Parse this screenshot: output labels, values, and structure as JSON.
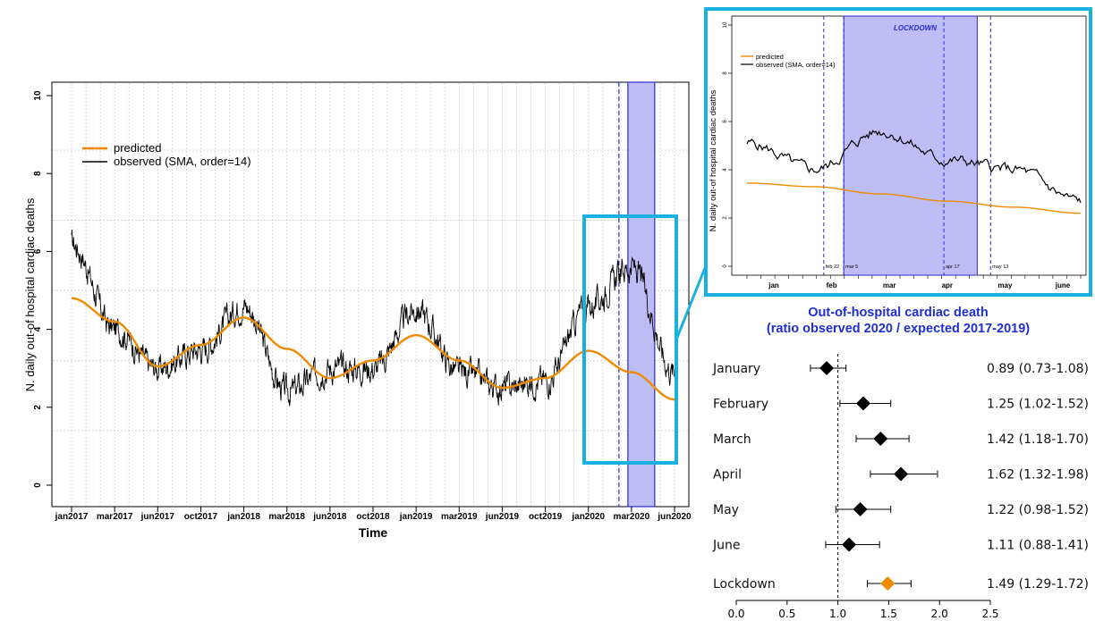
{
  "colors": {
    "predicted": "#f08a00",
    "observed": "#000000",
    "lockdown_band": "#b3b3f5",
    "lockdown_border": "#2a2ad0",
    "date_line": "#2a2ad0",
    "highlight_box": "#1ab0e0",
    "title": "#1f2fd0",
    "lockdown_marker": "#f08a00"
  },
  "chart_data": [
    {
      "type": "line",
      "xlabel": "Time",
      "ylabel": "N. daily out-of hospital cardiac deaths",
      "ylim": [
        0,
        10
      ],
      "yticks": [
        "0",
        "2",
        "4",
        "6",
        "8",
        "10"
      ],
      "xticks": [
        "jan2017",
        "mar2017",
        "jun2017",
        "oct2017",
        "jan2018",
        "mar2018",
        "jun2018",
        "oct2018",
        "jan2019",
        "mar2019",
        "jun2019",
        "oct2019",
        "jan2020",
        "mar2020",
        "jun2020"
      ],
      "grid": true,
      "legend": "top-left",
      "series": [
        {
          "name": "predicted",
          "x": [
            "jan2017",
            "mar2017",
            "jun2017",
            "oct2017",
            "jan2018",
            "mar2018",
            "jun2018",
            "oct2018",
            "jan2019",
            "mar2019",
            "jun2019",
            "oct2019",
            "jan2020",
            "mar2020",
            "jun2020"
          ],
          "values": [
            4.8,
            4.2,
            3.05,
            3.6,
            4.3,
            3.5,
            2.75,
            3.2,
            3.85,
            3.2,
            2.5,
            2.75,
            3.45,
            2.9,
            2.2
          ]
        },
        {
          "name": "observed (SMA, order=14)",
          "x": [
            "jan2017",
            "mar2017",
            "jun2017",
            "oct2017",
            "jan2018",
            "mar2018",
            "jun2018",
            "oct2018",
            "jan2019",
            "mar2019",
            "jun2019",
            "oct2019",
            "jan2020",
            "mar2020",
            "jun2020"
          ],
          "values": [
            6.2,
            4.0,
            3.0,
            3.5,
            4.6,
            2.4,
            3.0,
            3.0,
            4.5,
            2.9,
            2.5,
            2.7,
            4.6,
            5.6,
            2.9
          ]
        }
      ],
      "shaded_region": {
        "from": "mar2020",
        "to": "may2020"
      }
    },
    {
      "type": "line",
      "ylabel": "N. daily out-of hospital cardiac deaths",
      "ylim": [
        0,
        10
      ],
      "yticks": [
        "0",
        "2",
        "4",
        "6",
        "8",
        "10"
      ],
      "xticks": [
        "jan",
        "feb",
        "mar",
        "apr",
        "may",
        "june"
      ],
      "annotation": "LOCKDOWN",
      "date_marks": [
        "feb 22",
        "mar 5",
        "apr 17",
        "may 13"
      ],
      "legend": "top-left",
      "series": [
        {
          "name": "predicted",
          "x": [
            "jan",
            "feb",
            "mar",
            "apr",
            "may",
            "june"
          ],
          "values": [
            3.45,
            3.3,
            3.0,
            2.7,
            2.45,
            2.2
          ]
        },
        {
          "name": "observed (SMA, order=14)",
          "x": [
            "jan",
            "feb",
            "mar",
            "apr",
            "may",
            "june"
          ],
          "values": [
            5.1,
            4.0,
            5.6,
            4.4,
            4.0,
            2.7
          ]
        }
      ]
    },
    {
      "type": "forest",
      "title": "Out-of-hospital cardiac death",
      "subtitle": "(ratio observed 2020 / expected 2017-2019)",
      "xlim": [
        0,
        2.5
      ],
      "xticks": [
        "0.0",
        "0.5",
        "1.0",
        "1.5",
        "2.0",
        "2.5"
      ],
      "reference_line": 1.0,
      "rows": [
        {
          "label": "January",
          "value": 0.89,
          "low": 0.73,
          "high": 1.08,
          "text": "0.89 (0.73-1.08)"
        },
        {
          "label": "February",
          "value": 1.25,
          "low": 1.02,
          "high": 1.52,
          "text": "1.25 (1.02-1.52)"
        },
        {
          "label": "March",
          "value": 1.42,
          "low": 1.18,
          "high": 1.7,
          "text": "1.42 (1.18-1.70)"
        },
        {
          "label": "April",
          "value": 1.62,
          "low": 1.32,
          "high": 1.98,
          "text": "1.62 (1.32-1.98)"
        },
        {
          "label": "May",
          "value": 1.22,
          "low": 0.98,
          "high": 1.52,
          "text": "1.22 (0.98-1.52)"
        },
        {
          "label": "June",
          "value": 1.11,
          "low": 0.88,
          "high": 1.41,
          "text": "1.11 (0.88-1.41)"
        },
        {
          "label": "Lockdown",
          "value": 1.49,
          "low": 1.29,
          "high": 1.72,
          "text": "1.49 (1.29-1.72)",
          "highlight": true
        }
      ]
    }
  ]
}
